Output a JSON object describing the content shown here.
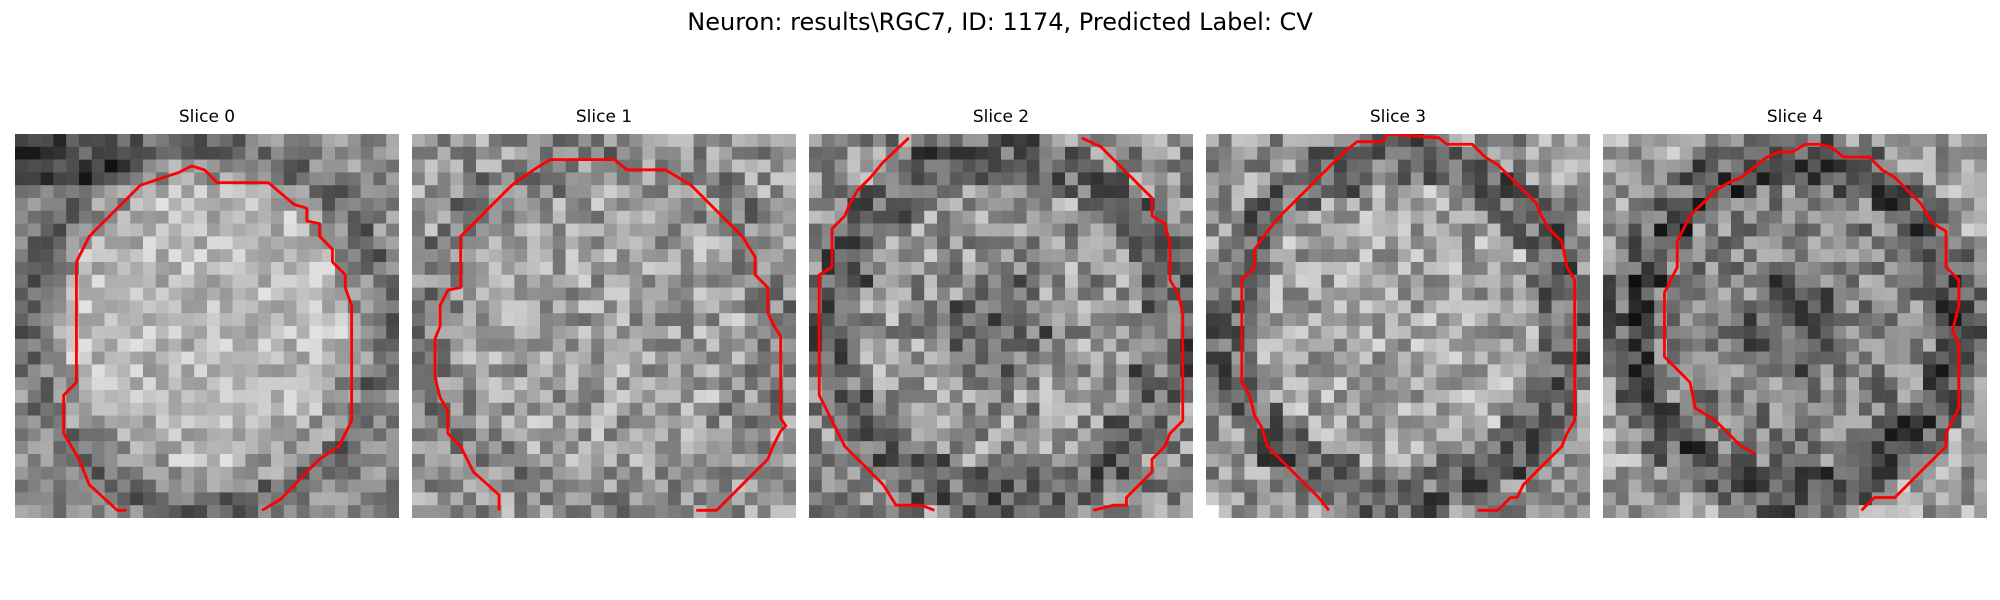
{
  "figure": {
    "title": "Neuron: results\\RGC7, ID: 1174, Predicted Label: CV"
  },
  "panels": [
    {
      "title": "Slice 0",
      "outline_color": "#ff0000"
    },
    {
      "title": "Slice 1",
      "outline_color": "#ff0000"
    },
    {
      "title": "Slice 2",
      "outline_color": "#ff0000"
    },
    {
      "title": "Slice 3",
      "outline_color": "#ff0000"
    },
    {
      "title": "Slice 4",
      "outline_color": "#ff0000"
    }
  ]
}
